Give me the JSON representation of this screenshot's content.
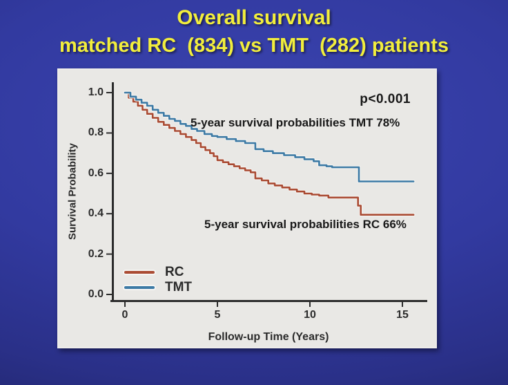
{
  "title": {
    "line1": "Overall survival",
    "line2": "matched RC  (834) vs TMT  (282) patients"
  },
  "colors": {
    "background_center": "#3b44b0",
    "background_edge": "#1f2468",
    "title_text": "#f2ee3c",
    "card_background": "#e9e8e5",
    "axis": "#2b2b2b",
    "rc_line": "#aa4b33",
    "tmt_line": "#3c7aa5",
    "halo": "#f6f5f2"
  },
  "annotations": {
    "p_value": "p<0.001",
    "tmt_note": "5-year survival probabilities TMT 78%",
    "rc_note": "5-year survival probabilities RC 66%"
  },
  "legend": {
    "entries": [
      {
        "label": "RC",
        "color": "#aa4b33"
      },
      {
        "label": "TMT",
        "color": "#3c7aa5"
      }
    ]
  },
  "chart_data": {
    "type": "line",
    "subtype": "kaplan-meier-step",
    "title": "",
    "xlabel": "Follow-up Time (Years)",
    "ylabel": "Survival Probability",
    "xlim": [
      0,
      16
    ],
    "ylim": [
      0.0,
      1.0
    ],
    "x_ticks": [
      0,
      5,
      10,
      15
    ],
    "y_ticks": [
      1.0,
      0.8,
      0.6,
      0.4,
      0.2,
      0.0
    ],
    "grid": false,
    "legend_position": "lower-left",
    "key_values": {
      "p_value": "p<0.001",
      "five_year_survival_TMT": 0.78,
      "five_year_survival_RC": 0.66,
      "n_RC": 834,
      "n_TMT": 282
    },
    "series": [
      {
        "name": "RC",
        "color": "#aa4b33",
        "x": [
          0,
          0.2,
          0.45,
          0.7,
          0.95,
          1.2,
          1.5,
          1.8,
          2.1,
          2.4,
          2.7,
          3.0,
          3.3,
          3.6,
          3.85,
          4.1,
          4.35,
          4.6,
          4.8,
          5.0,
          5.3,
          5.6,
          5.9,
          6.2,
          6.5,
          6.8,
          7.05,
          7.4,
          7.75,
          8.1,
          8.5,
          8.9,
          9.3,
          9.7,
          10.1,
          10.5,
          11.0,
          12.6,
          12.75,
          15.6
        ],
        "y": [
          1.0,
          0.975,
          0.955,
          0.935,
          0.915,
          0.895,
          0.875,
          0.855,
          0.84,
          0.825,
          0.81,
          0.795,
          0.78,
          0.765,
          0.75,
          0.73,
          0.715,
          0.7,
          0.685,
          0.665,
          0.655,
          0.645,
          0.635,
          0.625,
          0.615,
          0.605,
          0.575,
          0.565,
          0.55,
          0.54,
          0.53,
          0.52,
          0.51,
          0.5,
          0.495,
          0.49,
          0.48,
          0.44,
          0.395,
          0.395
        ]
      },
      {
        "name": "TMT",
        "color": "#3c7aa5",
        "x": [
          0,
          0.3,
          0.6,
          0.9,
          1.2,
          1.5,
          1.8,
          2.1,
          2.4,
          2.7,
          3.0,
          3.3,
          3.6,
          3.9,
          4.3,
          4.7,
          5.0,
          5.5,
          6.0,
          6.5,
          7.05,
          7.5,
          8.0,
          8.6,
          9.2,
          9.7,
          10.2,
          10.5,
          10.9,
          11.2,
          12.65,
          15.6
        ],
        "y": [
          1.0,
          0.98,
          0.965,
          0.95,
          0.935,
          0.915,
          0.9,
          0.885,
          0.87,
          0.86,
          0.845,
          0.835,
          0.82,
          0.81,
          0.795,
          0.785,
          0.78,
          0.77,
          0.76,
          0.75,
          0.72,
          0.71,
          0.7,
          0.69,
          0.68,
          0.67,
          0.66,
          0.64,
          0.635,
          0.63,
          0.56,
          0.56
        ]
      }
    ]
  }
}
